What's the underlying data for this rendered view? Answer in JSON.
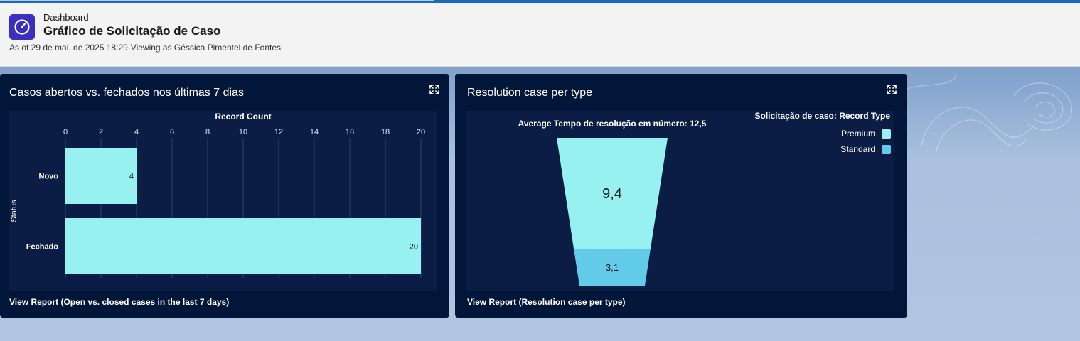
{
  "header": {
    "label": "Dashboard",
    "title": "Gráfico de Solicitação de Caso",
    "meta": "As of 29 de mai. de 2025 18:29·Viewing as Géssica Pimentel de Fontes",
    "icon": "dashboard-gauge-icon"
  },
  "colors": {
    "premium": "#97f1f0",
    "standard": "#62cbea",
    "card_bg": "#011638",
    "plot_bg": "#0b1d45"
  },
  "cards": {
    "left": {
      "title": "Casos abertos vs. fechados nos últimas 7 dias",
      "view_report": "View Report (Open vs. closed cases in the last 7 days)",
      "expand_icon": "expand-icon"
    },
    "right": {
      "title": "Resolution case per type",
      "view_report": "View Report (Resolution case per type)",
      "expand_icon": "expand-icon"
    }
  },
  "chart_data": [
    {
      "type": "bar",
      "orientation": "horizontal",
      "xlabel": "Record Count",
      "ylabel": "Status",
      "categories": [
        "Novo",
        "Fechado"
      ],
      "values": [
        4,
        20
      ],
      "xlim": [
        0,
        20
      ],
      "ticks": [
        "0",
        "2",
        "4",
        "6",
        "8",
        "10",
        "12",
        "14",
        "16",
        "18",
        "20"
      ],
      "data_labels": [
        "4",
        "20"
      ],
      "grid": true
    },
    {
      "type": "funnel",
      "title": "Average Tempo de resolução em número: 12,5",
      "legend_title": "Solicitação de caso: Record Type",
      "legend_position": "top-right",
      "series": [
        {
          "name": "Premium",
          "value": 9.4,
          "label": "9,4"
        },
        {
          "name": "Standard",
          "value": 3.1,
          "label": "3,1"
        }
      ]
    }
  ]
}
